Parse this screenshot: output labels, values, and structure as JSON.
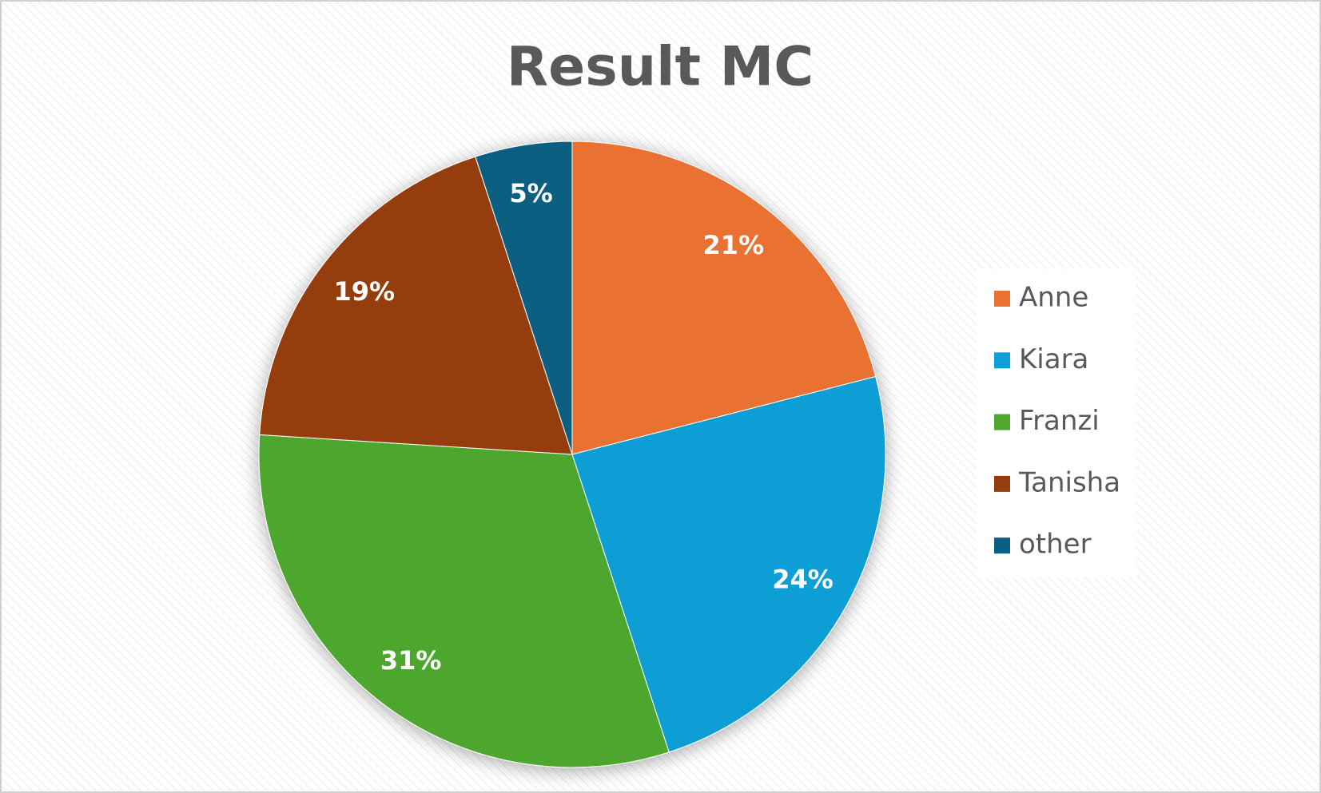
{
  "chart_data": {
    "type": "pie",
    "title": "Result MC",
    "categories": [
      "Anne",
      "Kiara",
      "Franzi",
      "Tanisha",
      "other"
    ],
    "values": [
      21,
      24,
      31,
      19,
      5
    ],
    "value_labels": [
      "21%",
      "24%",
      "31%",
      "19%",
      "5%"
    ],
    "colors": [
      "#e97132",
      "#0f9ed5",
      "#4ea72e",
      "#963c11",
      "#0b5f82"
    ],
    "legend": "right"
  }
}
